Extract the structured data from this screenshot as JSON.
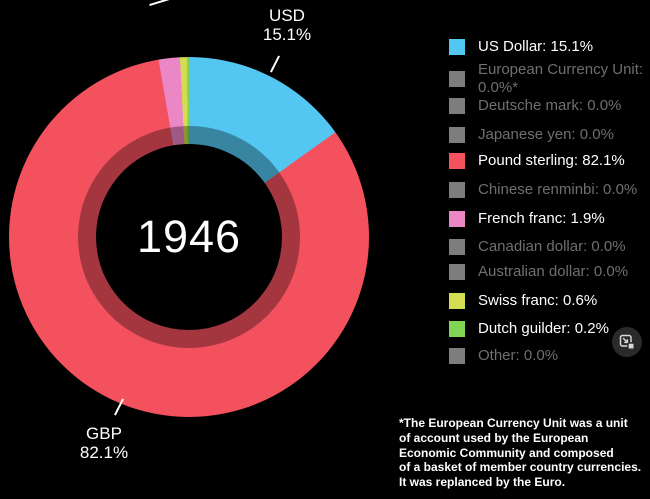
{
  "background": "#000000",
  "chart_data": {
    "type": "pie",
    "subtype": "donut",
    "center_label": "1946",
    "unit": "%",
    "legend_position": "right",
    "slices": [
      {
        "label": "US Dollar",
        "value": 15.1,
        "color": "#53C6F1",
        "legend_label": "US Dollar: 15.1%"
      },
      {
        "label": "European Currency Unit",
        "value": 0.0,
        "color": "#7D7D7D",
        "legend_label": "European Currency Unit: 0.0%*"
      },
      {
        "label": "Deutsche mark",
        "value": 0.0,
        "color": "#7D7D7D",
        "legend_label": "Deutsche mark: 0.0%"
      },
      {
        "label": "Japanese yen",
        "value": 0.0,
        "color": "#7D7D7D",
        "legend_label": "Japanese yen: 0.0%"
      },
      {
        "label": "Pound sterling",
        "value": 82.1,
        "color": "#F4515F",
        "legend_label": "Pound sterling: 82.1%"
      },
      {
        "label": "Chinese renminbi",
        "value": 0.0,
        "color": "#7D7D7D",
        "legend_label": "Chinese renminbi: 0.0%"
      },
      {
        "label": "French franc",
        "value": 1.9,
        "color": "#EC87C5",
        "legend_label": "French franc: 1.9%"
      },
      {
        "label": "Canadian dollar",
        "value": 0.0,
        "color": "#7D7D7D",
        "legend_label": "Canadian dollar: 0.0%"
      },
      {
        "label": "Australian dollar",
        "value": 0.0,
        "color": "#7D7D7D",
        "legend_label": "Australian dollar: 0.0%"
      },
      {
        "label": "Swiss franc",
        "value": 0.6,
        "color": "#D3DC52",
        "legend_label": "Swiss franc: 0.6%"
      },
      {
        "label": "Dutch guilder",
        "value": 0.2,
        "color": "#82D455",
        "legend_label": "Dutch guilder: 0.2%"
      },
      {
        "label": "Other",
        "value": 0.0,
        "color": "#7D7D7D",
        "legend_label": "Other: 0.0%"
      }
    ]
  },
  "callouts": {
    "usd": {
      "name": "USD",
      "value": "15.1%"
    },
    "gbp": {
      "name": "GBP",
      "value": "82.1%"
    }
  },
  "controls": {
    "resize_button_icon": "resize-icon"
  },
  "footnote": {
    "lines": [
      "*The European Currency Unit was a unit",
      "of account used by the European",
      "Economic Community and composed",
      "of a basket of member country currencies.",
      "It was replanced by the Euro."
    ]
  }
}
